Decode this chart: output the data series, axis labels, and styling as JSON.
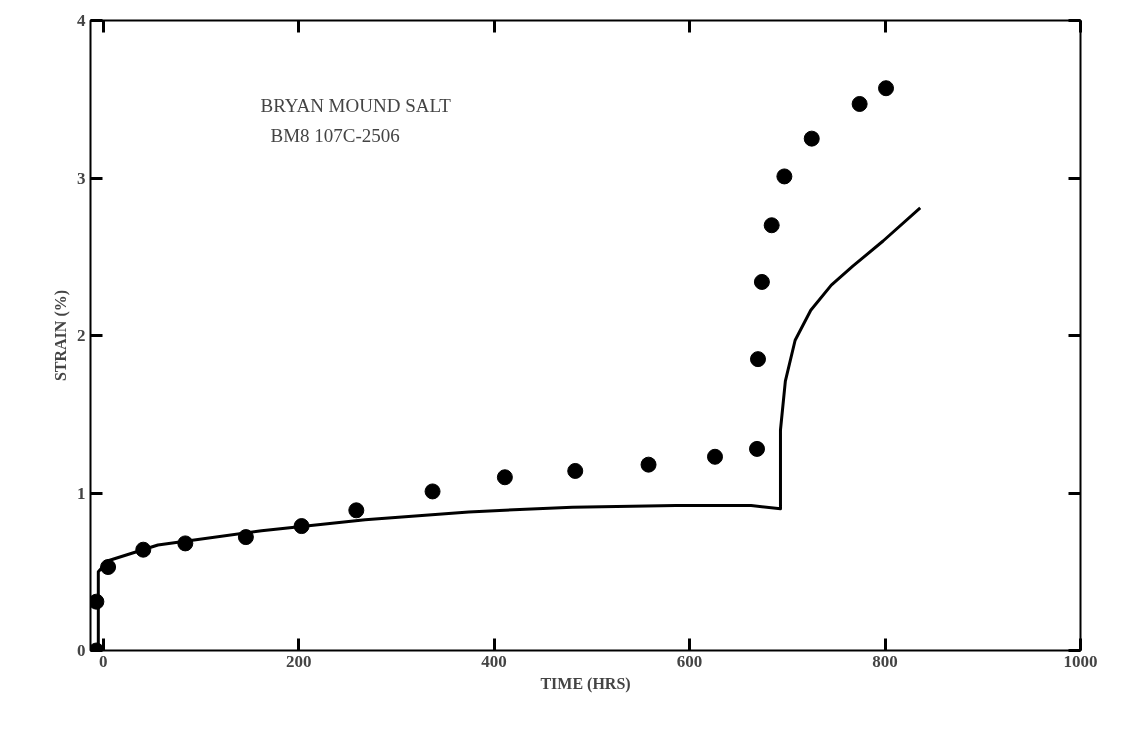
{
  "chart_data": {
    "type": "scatter",
    "xlabel": "TIME (HRS)",
    "ylabel": "STRAIN (%)",
    "annotations": [
      "BRYAN MOUND SALT",
      "BM8  107C-2506"
    ],
    "xlim": [
      -13,
      1000
    ],
    "ylim": [
      0,
      4
    ],
    "xticks": [
      0,
      200,
      400,
      600,
      800,
      1000
    ],
    "yticks": [
      0,
      1,
      2,
      3,
      4
    ],
    "grid": false,
    "series": [
      {
        "marker": "circle",
        "color": "#000000",
        "x": [
          -7,
          -7,
          5,
          41,
          84,
          146,
          203,
          259,
          337,
          411,
          483,
          558,
          626,
          669,
          670,
          674,
          684,
          697,
          725,
          774,
          801
        ],
        "values": [
          0,
          0.31,
          0.53,
          0.64,
          0.68,
          0.72,
          0.79,
          0.89,
          1.01,
          1.1,
          1.14,
          1.18,
          1.23,
          1.28,
          1.85,
          2.34,
          2.7,
          3.01,
          3.25,
          3.47,
          3.57
        ]
      },
      {
        "type": "line",
        "color": "#000000",
        "x": [
          -5,
          -5,
          5,
          56,
          162,
          268,
          374,
          480,
          586,
          663,
          693,
          693,
          698,
          708,
          724,
          745,
          767,
          798,
          836
        ],
        "values": [
          0,
          0.5,
          0.57,
          0.67,
          0.76,
          0.83,
          0.88,
          0.91,
          0.92,
          0.92,
          0.9,
          1.4,
          1.71,
          1.97,
          2.16,
          2.32,
          2.44,
          2.6,
          2.81
        ]
      }
    ]
  }
}
